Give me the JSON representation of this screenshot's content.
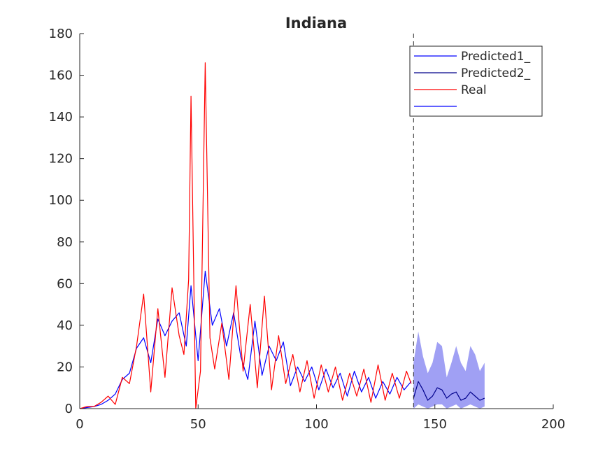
{
  "chart_data": {
    "type": "line",
    "title": "Indiana",
    "xlabel": "",
    "ylabel": "",
    "xlim": [
      0,
      200
    ],
    "ylim": [
      0,
      180
    ],
    "xticks": [
      0,
      50,
      100,
      150,
      200
    ],
    "yticks": [
      0,
      20,
      40,
      60,
      80,
      100,
      120,
      140,
      160,
      180
    ],
    "grid": false,
    "legend_position": "top-right",
    "forecast_start_x": 141,
    "series": [
      {
        "name": "Predicted1_",
        "color": "#0000ff",
        "x": [
          0,
          3,
          6,
          9,
          12,
          15,
          18,
          21,
          24,
          27,
          30,
          33,
          36,
          39,
          42,
          45,
          47,
          50,
          53,
          56,
          59,
          62,
          65,
          68,
          71,
          74,
          77,
          80,
          83,
          86,
          89,
          92,
          95,
          98,
          101,
          104,
          107,
          110,
          113,
          116,
          119,
          122,
          125,
          128,
          131,
          134,
          137,
          140
        ],
        "values": [
          0,
          0.5,
          1,
          2,
          4,
          7,
          14,
          17,
          29,
          34,
          22,
          43,
          35,
          42,
          46,
          30,
          59,
          23,
          66,
          40,
          48,
          30,
          46,
          25,
          14,
          42,
          16,
          30,
          23,
          32,
          11,
          20,
          13,
          20,
          9,
          19,
          10,
          17,
          6,
          18,
          8,
          15,
          5,
          13,
          7,
          15,
          9,
          13
        ]
      },
      {
        "name": "Predicted2_",
        "color": "#00008b",
        "x": [
          141,
          143,
          145,
          147,
          149,
          151,
          153,
          155,
          157,
          159,
          161,
          163,
          165,
          167,
          169,
          171
        ],
        "values": [
          5,
          13,
          9,
          4,
          6,
          10,
          9,
          5,
          7,
          8,
          4,
          5,
          8,
          6,
          4,
          5
        ]
      },
      {
        "name": "Real",
        "color": "#ff0000",
        "x": [
          0,
          3,
          6,
          9,
          12,
          15,
          18,
          21,
          24,
          27,
          30,
          33,
          36,
          39,
          42,
          44,
          46,
          47,
          49,
          51,
          53,
          55,
          57,
          60,
          63,
          66,
          69,
          72,
          75,
          78,
          81,
          84,
          87,
          90,
          93,
          96,
          99,
          102,
          105,
          108,
          111,
          114,
          117,
          120,
          123,
          126,
          129,
          132,
          135,
          138,
          140
        ],
        "values": [
          0,
          1,
          1,
          3,
          6,
          2,
          15,
          12,
          30,
          55,
          8,
          48,
          15,
          58,
          35,
          26,
          62,
          150,
          0,
          18,
          166,
          34,
          19,
          41,
          14,
          59,
          18,
          50,
          10,
          54,
          9,
          35,
          12,
          26,
          8,
          23,
          5,
          21,
          8,
          20,
          4,
          17,
          6,
          19,
          3,
          21,
          4,
          17,
          5,
          18,
          12
        ]
      },
      {
        "name": "",
        "color": "#0000ff",
        "type": "band",
        "x": [
          141,
          143,
          145,
          147,
          149,
          151,
          153,
          155,
          157,
          159,
          161,
          163,
          165,
          167,
          169,
          171
        ],
        "upper": [
          22,
          37,
          25,
          17,
          22,
          32,
          30,
          15,
          22,
          30,
          22,
          18,
          30,
          26,
          18,
          22
        ],
        "lower": [
          0,
          2,
          1,
          0,
          1,
          2,
          2,
          0,
          1,
          2,
          0,
          1,
          2,
          1,
          0,
          1
        ]
      }
    ],
    "legend": [
      "Predicted1_",
      "Predicted2_",
      "Real",
      ""
    ]
  }
}
